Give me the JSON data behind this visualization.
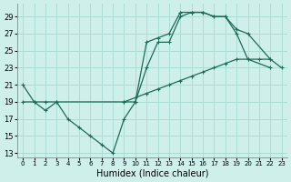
{
  "xlabel": "Humidex (Indice chaleur)",
  "background_color": "#cff0ea",
  "grid_color": "#aaddd6",
  "line_color": "#1b6b58",
  "xlim": [
    -0.5,
    23.5
  ],
  "ylim": [
    12.5,
    30.5
  ],
  "xticks": [
    0,
    1,
    2,
    3,
    4,
    5,
    6,
    7,
    8,
    9,
    10,
    11,
    12,
    13,
    14,
    15,
    16,
    17,
    18,
    19,
    20,
    21,
    22,
    23
  ],
  "yticks": [
    13,
    15,
    17,
    19,
    21,
    23,
    25,
    27,
    29
  ],
  "line1_x": [
    0,
    1,
    2,
    3,
    4,
    5,
    6,
    7,
    8,
    9,
    10,
    11,
    12,
    13,
    14,
    15,
    16,
    17,
    18,
    19,
    20,
    22
  ],
  "line1_y": [
    21,
    19,
    18,
    19,
    17,
    16,
    15,
    14,
    13,
    17,
    19,
    23,
    26,
    26,
    29,
    29.5,
    29.5,
    29,
    29,
    27,
    24,
    23
  ],
  "line2_x": [
    9,
    10,
    11,
    12,
    13,
    14,
    15,
    16,
    17,
    18,
    19,
    20,
    22
  ],
  "line2_y": [
    19,
    19,
    26,
    26.5,
    27,
    29.5,
    29.5,
    29.5,
    29,
    29,
    27.5,
    27,
    24
  ],
  "line3_x": [
    0,
    1,
    2,
    3,
    9,
    10,
    11,
    12,
    13,
    14,
    15,
    16,
    17,
    18,
    19,
    20,
    21,
    22,
    23
  ],
  "line3_y": [
    19,
    19,
    19,
    19,
    19,
    19.5,
    20,
    20.5,
    21,
    21.5,
    22,
    22.5,
    23,
    23.5,
    24,
    24,
    24,
    24,
    23
  ]
}
